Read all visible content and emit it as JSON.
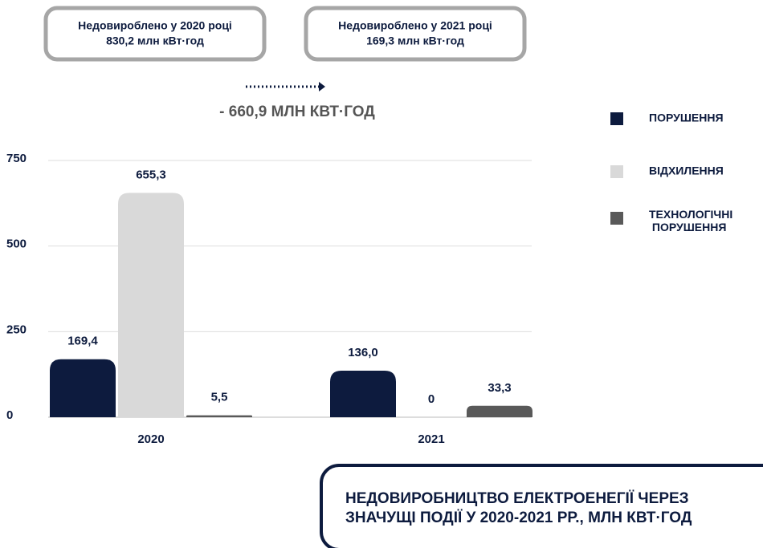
{
  "chart_data": {
    "type": "bar",
    "title": [
      "НЕДОВИРОБНИЦТВО ЕЛЕКТРОЕНЕГІЇ ЧЕРЕЗ",
      "ЗНАЧУЩІ ПОДІЇ У 2020-2021 РР., МЛН КВТ·ГОД"
    ],
    "annotations": [
      {
        "title": "Недовироблено у 2020 році",
        "value": "830,2 млн кВт·год"
      },
      {
        "title": "Недовироблено у 2021 році",
        "value": "169,3 млн кВт·год"
      }
    ],
    "difference": "- 660,9 МЛН КВТ·ГОД",
    "categories": [
      "2020",
      "2021"
    ],
    "series": [
      {
        "name": "ПОРУШЕННЯ",
        "color": "#0d1b3e",
        "values": [
          169.4,
          136.0
        ],
        "value_labels": [
          "169,4",
          "136,0"
        ]
      },
      {
        "name": "ВІДХИЛЕННЯ",
        "color": "#d9d9d9",
        "values": [
          655.3,
          0
        ],
        "value_labels": [
          "655,3",
          "0"
        ]
      },
      {
        "name": "ТЕХНОЛОГІЧНІ ПОРУШЕННЯ",
        "color": "#595959",
        "values": [
          5.5,
          33.3
        ],
        "value_labels": [
          "5,5",
          "33,3"
        ]
      }
    ],
    "ylim": [
      0,
      750
    ],
    "yticks": [
      0,
      250,
      500,
      750
    ],
    "grid": true,
    "legend": "right"
  }
}
